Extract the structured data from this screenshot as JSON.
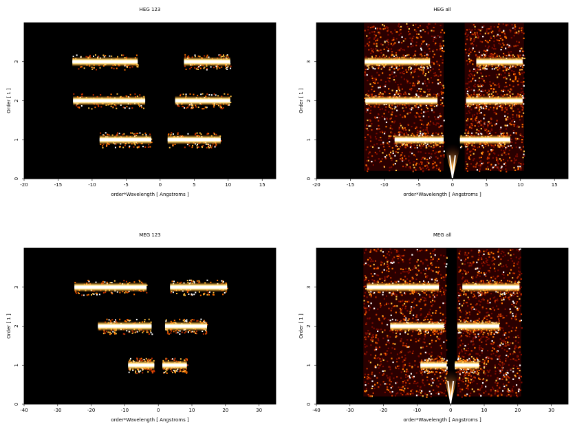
{
  "chart_data": [
    {
      "type": "heatmap",
      "title": "HEG 123",
      "xlabel": "order*Wavelength [ Angstroms ]",
      "ylabel": "Order [ 1 ]",
      "xlim": [
        -20,
        17
      ],
      "ylim": [
        0,
        4
      ],
      "xticks": [
        -20,
        -15,
        -10,
        -5,
        0,
        5,
        10,
        15
      ],
      "yticks": [
        0,
        1,
        2,
        3
      ],
      "colormap": [
        "#000000",
        "#5a0000",
        "#b83000",
        "#ff8000",
        "#ffd060",
        "#ffffff"
      ],
      "bands": [
        {
          "order": 3,
          "segments": [
            [
              -12.9,
              -3.3
            ],
            [
              3.5,
              10.3
            ]
          ]
        },
        {
          "order": 2,
          "segments": [
            [
              -12.8,
              -2.2
            ],
            [
              2.2,
              10.3
            ]
          ]
        },
        {
          "order": 1,
          "segments": [
            [
              -8.9,
              -1.3
            ],
            [
              1.1,
              8.9
            ]
          ]
        }
      ],
      "fans": []
    },
    {
      "type": "heatmap",
      "title": "HEG all",
      "xlabel": "order*Wavelength [ Angstroms ]",
      "ylabel": "Order [ 1 ]",
      "xlim": [
        -20,
        17
      ],
      "ylim": [
        0,
        4
      ],
      "xticks": [
        -20,
        -15,
        -10,
        -5,
        0,
        5,
        10,
        15
      ],
      "yticks": [
        0,
        1,
        2,
        3
      ],
      "colormap": [
        "#000000",
        "#5a0000",
        "#b83000",
        "#ff8000",
        "#ffd060",
        "#ffffff"
      ],
      "bands": [
        {
          "order": 3,
          "segments": [
            [
              -12.9,
              -3.3
            ],
            [
              3.5,
              10.3
            ]
          ]
        },
        {
          "order": 2,
          "segments": [
            [
              -12.8,
              -2.2
            ],
            [
              2.0,
              10.3
            ]
          ]
        },
        {
          "order": 1,
          "segments": [
            [
              -8.5,
              -1.3
            ],
            [
              1.1,
              8.5
            ]
          ]
        }
      ],
      "fans": [
        [
          -13,
          -1.3,
          0.2,
          4.0
        ],
        [
          1.8,
          10.5,
          0.2,
          4.0
        ]
      ]
    },
    {
      "type": "heatmap",
      "title": "MEG 123",
      "xlabel": "order*Wavelength [ Angstroms ]",
      "ylabel": "Order [ 1 ]",
      "xlim": [
        -40,
        35
      ],
      "ylim": [
        0,
        4
      ],
      "xticks": [
        -40,
        -30,
        -20,
        -10,
        0,
        10,
        20,
        30
      ],
      "yticks": [
        0,
        1,
        2,
        3
      ],
      "colormap": [
        "#000000",
        "#5a0000",
        "#b83000",
        "#ff8000",
        "#ffd060",
        "#ffffff"
      ],
      "bands": [
        {
          "order": 3,
          "segments": [
            [
              -25,
              -3.5
            ],
            [
              3.5,
              20.5
            ]
          ]
        },
        {
          "order": 2,
          "segments": [
            [
              -18,
              -2.0
            ],
            [
              2.0,
              14.5
            ]
          ]
        },
        {
          "order": 1,
          "segments": [
            [
              -9,
              -1.2
            ],
            [
              1.2,
              8.5
            ]
          ]
        }
      ],
      "fans": []
    },
    {
      "type": "heatmap",
      "title": "MEG all",
      "xlabel": "order*Wavelength [ Angstroms ]",
      "ylabel": "Order [ 1 ]",
      "xlim": [
        -40,
        35
      ],
      "ylim": [
        0,
        4
      ],
      "xticks": [
        -40,
        -30,
        -20,
        -10,
        0,
        10,
        20,
        30
      ],
      "yticks": [
        0,
        1,
        2,
        3
      ],
      "colormap": [
        "#000000",
        "#5a0000",
        "#b83000",
        "#ff8000",
        "#ffd060",
        "#ffffff"
      ],
      "bands": [
        {
          "order": 3,
          "segments": [
            [
              -25,
              -3.5
            ],
            [
              3.5,
              20.5
            ]
          ]
        },
        {
          "order": 2,
          "segments": [
            [
              -18,
              -2.0
            ],
            [
              2.0,
              14.5
            ]
          ]
        },
        {
          "order": 1,
          "segments": [
            [
              -9,
              -1.2
            ],
            [
              1.2,
              8.5
            ]
          ]
        }
      ],
      "fans": [
        [
          -26,
          -1.3,
          0.2,
          4.0
        ],
        [
          1.8,
          21,
          0.2,
          4.0
        ]
      ]
    }
  ]
}
